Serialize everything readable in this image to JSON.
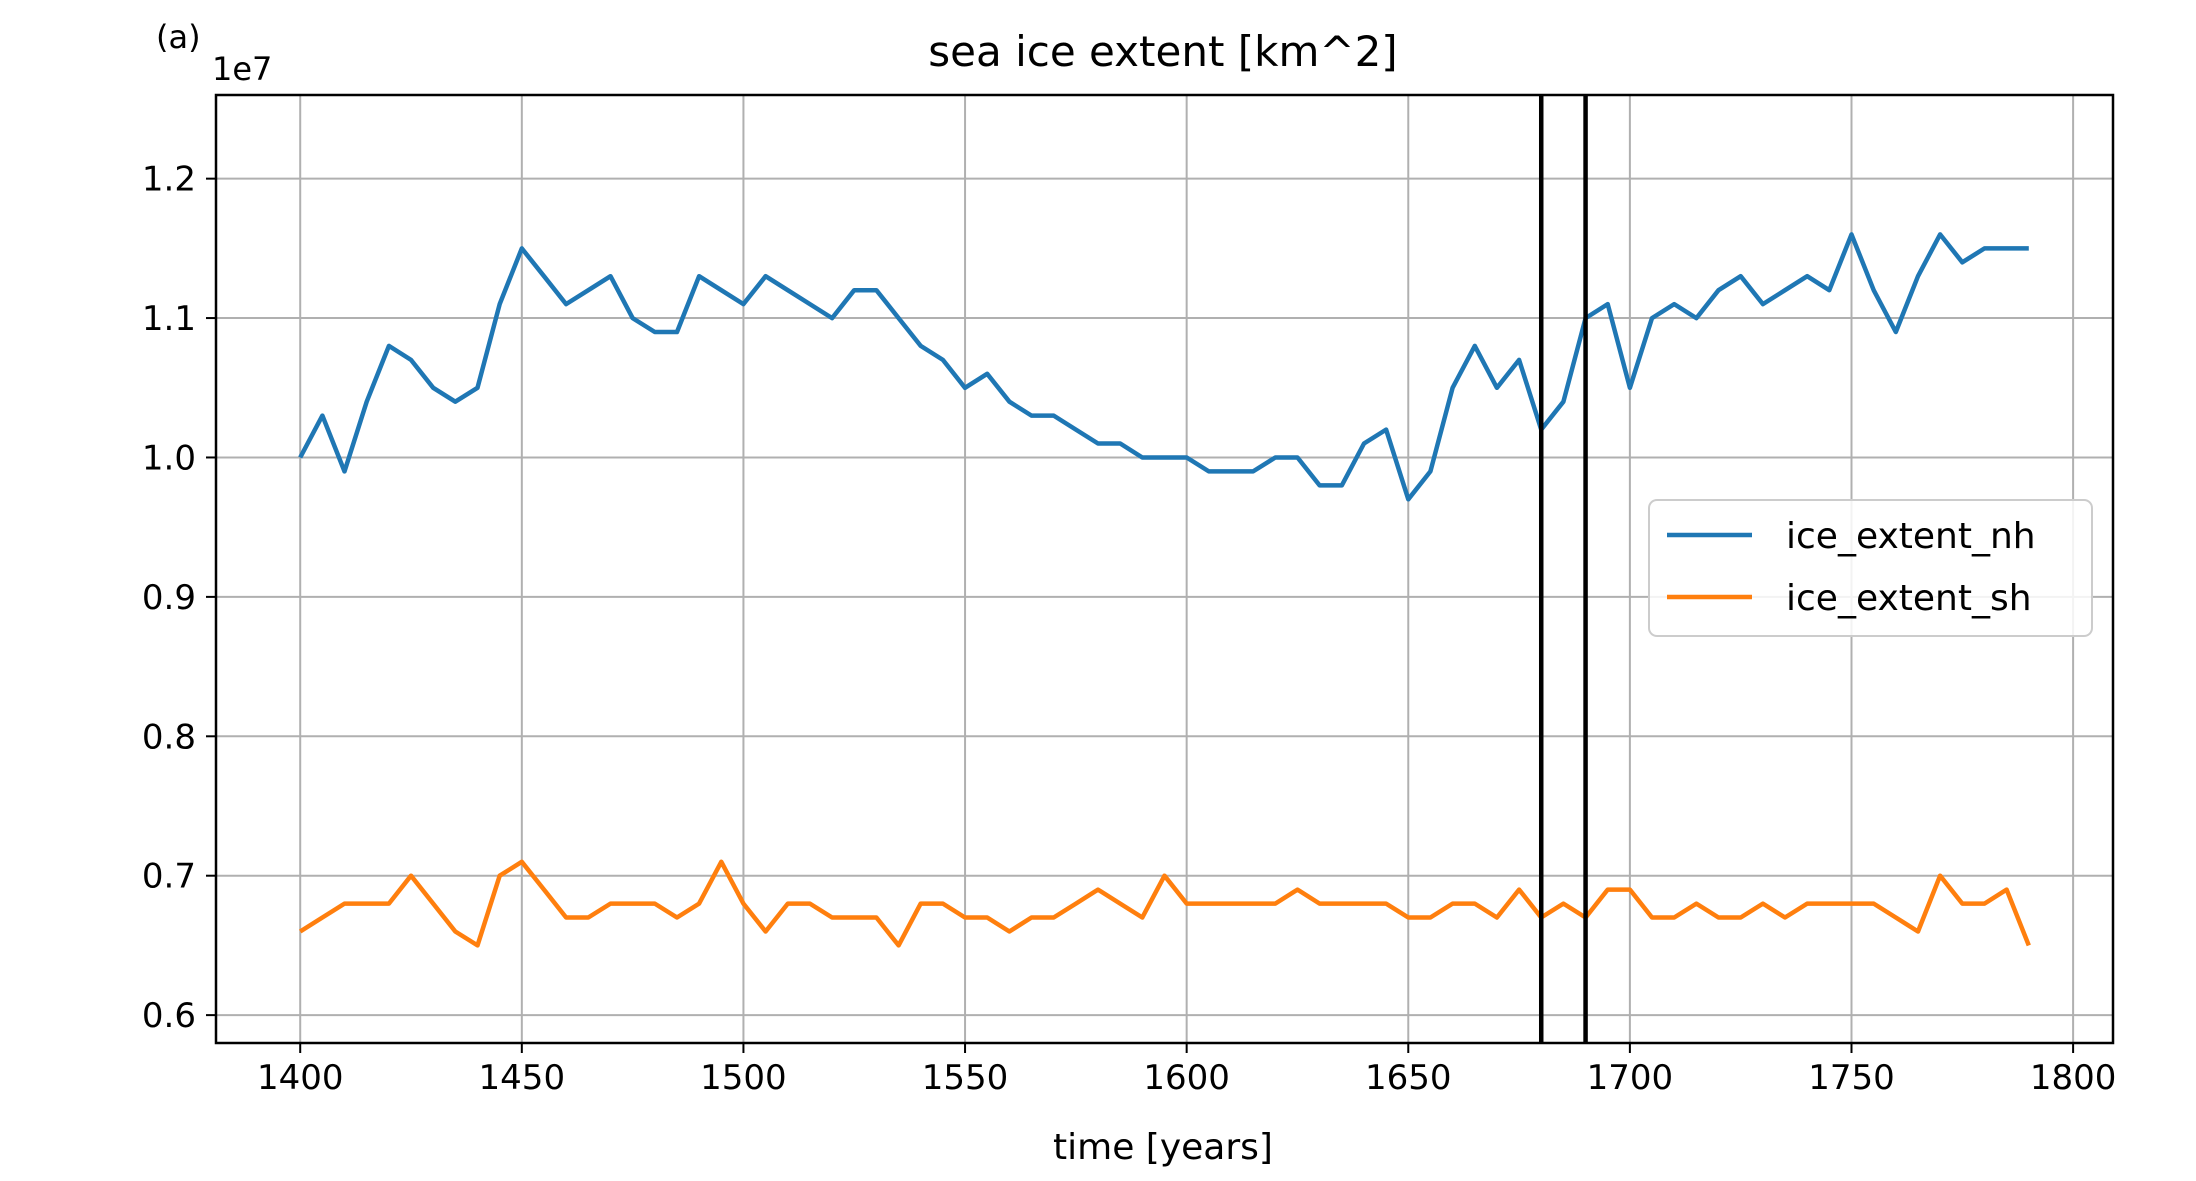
{
  "panel_label": "(a)",
  "chart_data": {
    "type": "line",
    "title": "sea ice extent [km^2]",
    "xlabel": "time [years]",
    "ylabel": "",
    "offset_label": "1e7",
    "xlim": [
      1381,
      1809
    ],
    "ylim": [
      5800000,
      12600000
    ],
    "xticks": [
      1400,
      1450,
      1500,
      1550,
      1600,
      1650,
      1700,
      1750,
      1800
    ],
    "xtick_labels": [
      "1400",
      "1450",
      "1500",
      "1550",
      "1600",
      "1650",
      "1700",
      "1750",
      "1800"
    ],
    "yticks": [
      6000000,
      7000000,
      8000000,
      9000000,
      10000000,
      11000000,
      12000000
    ],
    "ytick_labels": [
      "0.6",
      "0.7",
      "0.8",
      "0.9",
      "1.0",
      "1.1",
      "1.2"
    ],
    "grid": true,
    "legend_position": "center-right",
    "vertical_lines": [
      1680,
      1690
    ],
    "colors": {
      "nh": "#1f77b4",
      "sh": "#ff7f0e",
      "vline": "#000000",
      "grid": "#b0b0b0"
    },
    "x": [
      1400,
      1405,
      1410,
      1415,
      1420,
      1425,
      1430,
      1435,
      1440,
      1445,
      1450,
      1455,
      1460,
      1465,
      1470,
      1475,
      1480,
      1485,
      1490,
      1495,
      1500,
      1505,
      1510,
      1515,
      1520,
      1525,
      1530,
      1535,
      1540,
      1545,
      1550,
      1555,
      1560,
      1565,
      1570,
      1575,
      1580,
      1585,
      1590,
      1595,
      1600,
      1605,
      1610,
      1615,
      1620,
      1625,
      1630,
      1635,
      1640,
      1645,
      1650,
      1655,
      1660,
      1665,
      1670,
      1675,
      1680,
      1685,
      1690,
      1695,
      1700,
      1705,
      1710,
      1715,
      1720,
      1725,
      1730,
      1735,
      1740,
      1745,
      1750,
      1755,
      1760,
      1765,
      1770,
      1775,
      1780,
      1785,
      1790
    ],
    "series": [
      {
        "name": "ice_extent_nh",
        "values": [
          10000000,
          10300000,
          9900000,
          10400000,
          10800000,
          10700000,
          10500000,
          10400000,
          10500000,
          11100000,
          11500000,
          11300000,
          11100000,
          11200000,
          11300000,
          11000000,
          10900000,
          10900000,
          11300000,
          11200000,
          11100000,
          11300000,
          11200000,
          11100000,
          11000000,
          11200000,
          11200000,
          11000000,
          10800000,
          10700000,
          10500000,
          10600000,
          10400000,
          10300000,
          10300000,
          10200000,
          10100000,
          10100000,
          10000000,
          10000000,
          10000000,
          9900000,
          9900000,
          9900000,
          10000000,
          10000000,
          9800000,
          9800000,
          10100000,
          10200000,
          9700000,
          9900000,
          10500000,
          10800000,
          10500000,
          10700000,
          10200000,
          10400000,
          11000000,
          11100000,
          10500000,
          11000000,
          11100000,
          11000000,
          11200000,
          11300000,
          11100000,
          11200000,
          11300000,
          11200000,
          11600000,
          11200000,
          10900000,
          11300000,
          11600000,
          11400000,
          11500000,
          11500000,
          11500000
        ]
      },
      {
        "name": "ice_extent_sh",
        "values": [
          6600000,
          6700000,
          6800000,
          6800000,
          6800000,
          7000000,
          6800000,
          6600000,
          6500000,
          7000000,
          7100000,
          6900000,
          6700000,
          6700000,
          6800000,
          6800000,
          6800000,
          6700000,
          6800000,
          7100000,
          6800000,
          6600000,
          6800000,
          6800000,
          6700000,
          6700000,
          6700000,
          6500000,
          6800000,
          6800000,
          6700000,
          6700000,
          6600000,
          6700000,
          6700000,
          6800000,
          6900000,
          6800000,
          6700000,
          7000000,
          6800000,
          6800000,
          6800000,
          6800000,
          6800000,
          6900000,
          6800000,
          6800000,
          6800000,
          6800000,
          6700000,
          6700000,
          6800000,
          6800000,
          6700000,
          6900000,
          6700000,
          6800000,
          6700000,
          6900000,
          6900000,
          6700000,
          6700000,
          6800000,
          6700000,
          6700000,
          6800000,
          6700000,
          6800000,
          6800000,
          6800000,
          6800000,
          6700000,
          6600000,
          7000000,
          6800000,
          6800000,
          6900000,
          6500000
        ]
      }
    ]
  }
}
